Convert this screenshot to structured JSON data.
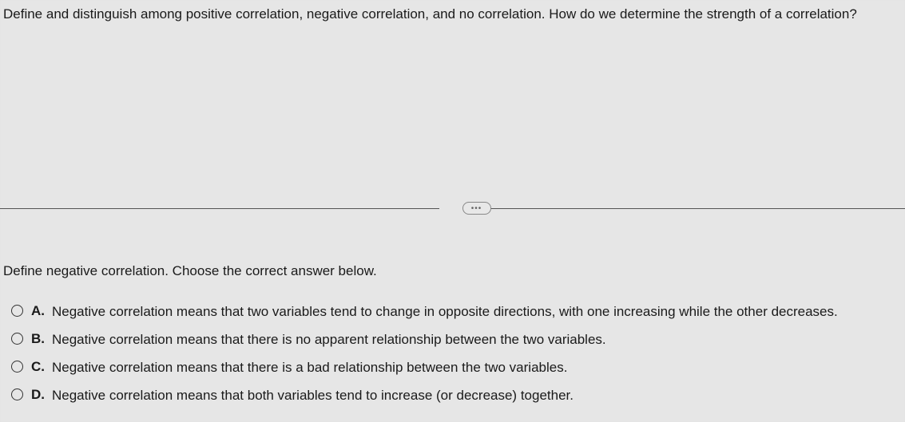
{
  "question": {
    "header": "Define and distinguish among positive correlation, negative correlation, and no correlation. How do we determine the strength of a correlation?",
    "subquestion": "Define negative correlation. Choose the correct answer below."
  },
  "divider": {
    "badge": "•••"
  },
  "options": [
    {
      "letter": "A.",
      "text": "Negative correlation means that two variables tend to change in opposite directions, with one increasing while the other decreases."
    },
    {
      "letter": "B.",
      "text": "Negative correlation means that there is no apparent relationship between the two variables."
    },
    {
      "letter": "C.",
      "text": "Negative correlation means that there is a bad relationship between the two variables."
    },
    {
      "letter": "D.",
      "text": "Negative correlation means that both variables tend to increase (or decrease) together."
    }
  ],
  "cutoff": "the correct answer below",
  "colors": {
    "background": "#e8e8e8",
    "text": "#1a1a1a",
    "divider": "#555555",
    "radio_border": "#333333"
  }
}
